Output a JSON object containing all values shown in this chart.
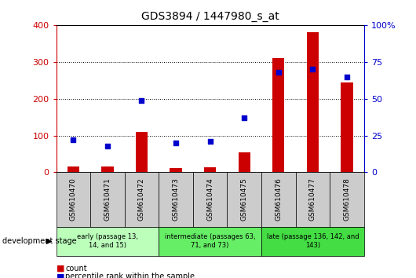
{
  "title": "GDS3894 / 1447980_s_at",
  "samples": [
    "GSM610470",
    "GSM610471",
    "GSM610472",
    "GSM610473",
    "GSM610474",
    "GSM610475",
    "GSM610476",
    "GSM610477",
    "GSM610478"
  ],
  "counts": [
    15,
    17,
    110,
    12,
    13,
    55,
    310,
    380,
    245
  ],
  "percentile_ranks_pct": [
    22,
    18,
    49,
    20,
    21,
    37,
    68,
    70,
    65
  ],
  "groups": [
    {
      "label": "early (passage 13,\n14, and 15)",
      "start": 0,
      "end": 2,
      "color": "#bbffbb"
    },
    {
      "label": "intermediate (passages 63,\n71, and 73)",
      "start": 3,
      "end": 5,
      "color": "#66ee66"
    },
    {
      "label": "late (passage 136, 142, and\n143)",
      "start": 6,
      "end": 8,
      "color": "#44dd44"
    }
  ],
  "ylim_left": [
    0,
    400
  ],
  "ylim_right": [
    0,
    100
  ],
  "yticks_left": [
    0,
    100,
    200,
    300,
    400
  ],
  "yticks_right": [
    0,
    25,
    50,
    75,
    100
  ],
  "left_axis_color": "#cc0000",
  "right_axis_color": "#0000cc",
  "bar_color": "#cc0000",
  "dot_color": "#0000cc",
  "bg_color": "#ffffff",
  "cell_bg": "#cccccc",
  "legend_count_color": "#cc0000",
  "legend_rank_color": "#0000cc",
  "bar_width": 0.35
}
